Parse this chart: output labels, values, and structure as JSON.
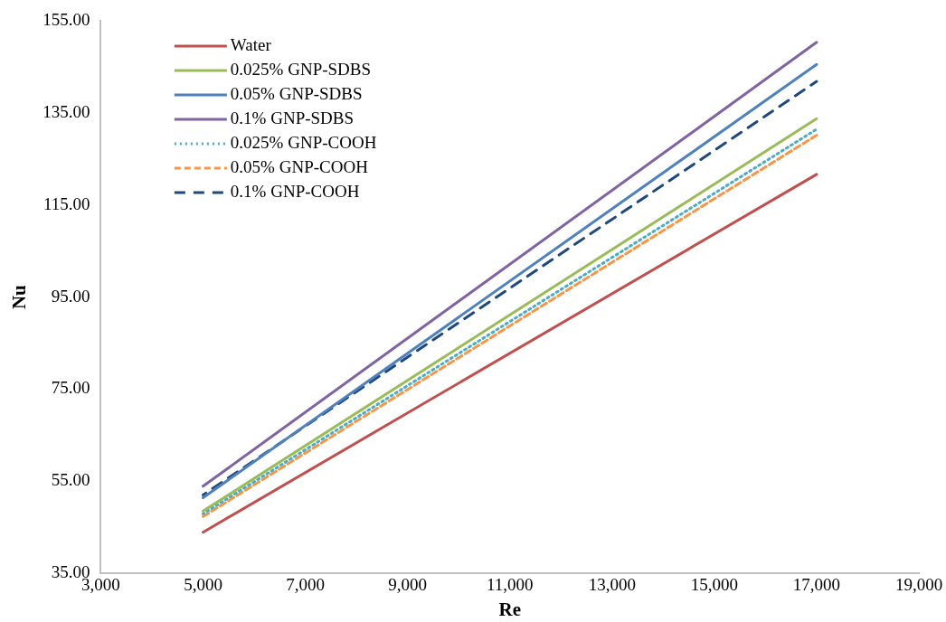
{
  "chart_data": {
    "type": "line",
    "xlabel": "Re",
    "ylabel": "Nu",
    "xlim": [
      3000,
      19000
    ],
    "xticks": [
      {
        "value": 3000,
        "label": "3,000"
      },
      {
        "value": 5000,
        "label": "5,000"
      },
      {
        "value": 7000,
        "label": "7,000"
      },
      {
        "value": 9000,
        "label": "9,000"
      },
      {
        "value": 11000,
        "label": "11,000"
      },
      {
        "value": 13000,
        "label": "13,000"
      },
      {
        "value": 15000,
        "label": "15,000"
      },
      {
        "value": 17000,
        "label": "17,000"
      },
      {
        "value": 19000,
        "label": "19,000"
      }
    ],
    "ylim": [
      35,
      155
    ],
    "yticks": [
      {
        "value": 35,
        "label": "35.00"
      },
      {
        "value": 55,
        "label": "55.00"
      },
      {
        "value": 75,
        "label": "75.00"
      },
      {
        "value": 95,
        "label": "95.00"
      },
      {
        "value": 115,
        "label": "115.00"
      },
      {
        "value": 135,
        "label": "135.00"
      },
      {
        "value": 155,
        "label": "155.00"
      }
    ],
    "x": [
      5000,
      17000
    ],
    "grid": false,
    "legend": "top left",
    "marker": "none",
    "series": [
      {
        "name": "Water",
        "color": "#c0504d",
        "line_style": "solid",
        "values": [
          43.9,
          121.7
        ]
      },
      {
        "name": "0.025% GNP-SDBS",
        "color": "#9bbb59",
        "line_style": "solid",
        "values": [
          48.5,
          133.8
        ]
      },
      {
        "name": "0.05% GNP-SDBS",
        "color": "#4f81bd",
        "line_style": "solid",
        "values": [
          51.4,
          145.6
        ]
      },
      {
        "name": "0.1% GNP-SDBS",
        "color": "#8064a2",
        "line_style": "solid",
        "values": [
          53.9,
          150.4
        ]
      },
      {
        "name": "0.025% GNP-COOH",
        "color": "#4bacc6",
        "line_style": "dotted",
        "values": [
          47.9,
          131.5
        ]
      },
      {
        "name": "0.05% GNP-COOH",
        "color": "#f79646",
        "line_style": "dashed",
        "values": [
          47.3,
          130.2
        ]
      },
      {
        "name": "0.1% GNP-COOH",
        "color": "#1f497d",
        "line_style": "longdash",
        "values": [
          52.0,
          141.9
        ]
      }
    ]
  }
}
